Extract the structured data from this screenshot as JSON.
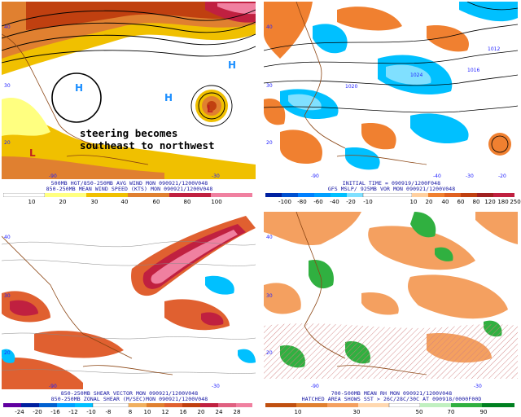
{
  "panels": {
    "p1": {
      "caption1": "500MB HGT/850-250MB AVG WIND MON 090921/1200V048",
      "caption2": "850-250MB MEAN WIND SPEED (KTS) MON 090921/1200V048",
      "annotation_line1": "steering becomes",
      "annotation_line2": "southeast to northwest",
      "scale": [
        "10",
        "20",
        "30",
        "40",
        "60",
        "80",
        "100"
      ],
      "colors": {
        "c1": "#ffff80",
        "c2": "#f0c000",
        "c3": "#e08030",
        "c4": "#c04010",
        "c5": "#c02040",
        "c6": "#f080a0"
      }
    },
    "p2": {
      "caption1": "INITIAL TIME = 090919/1200F048",
      "caption2": "GFS MSLP/ 925MB VOR MON 090921/1200V048",
      "scale": [
        "-100",
        "-80",
        "-60",
        "-40",
        "-20",
        "-10",
        "10",
        "20",
        "40",
        "60",
        "80",
        "120",
        "180",
        "250"
      ],
      "colors": {
        "neg": "#00c0ff",
        "pos": "#f08030"
      }
    },
    "p3": {
      "caption1": "850-250MB SHEAR VECTOR MON 090921/1200V048",
      "caption2": "850-250MB ZONAL SHEAR (M/SEC)MON 090921/1200V048",
      "scale": [
        "-24",
        "-20",
        "-16",
        "-12",
        "-10",
        "-8",
        "8",
        "10",
        "12",
        "16",
        "20",
        "24",
        "28"
      ],
      "colors": {
        "shear": "#e06030",
        "strong": "#c02040"
      }
    },
    "p4": {
      "caption1": "700-500MB MEAN RH MON 090921/1200V048",
      "caption2": "HATCHED AREA SHOWS SST > 26C/28C/30C AT 090918/0000F00D",
      "scale": [
        "10",
        "30",
        "50",
        "70",
        "90"
      ],
      "colors": {
        "dry": "#f4a060",
        "moist": "#30b040"
      }
    }
  },
  "map_labels": {
    "lat_50": "50",
    "lat_40": "40",
    "lat_30": "30",
    "lat_20": "20",
    "lat_10": "10",
    "lon_90": "-90",
    "lon_80": "-80",
    "lon_70": "-70",
    "lon_60": "-60",
    "lon_50": "-50",
    "lon_40": "-40",
    "lon_30": "-30",
    "lon_20": "-20",
    "high": "H",
    "low": "L",
    "contour_1016": "1016",
    "contour_1020": "1020",
    "contour_1024": "1024",
    "contour_1012": "1012"
  }
}
